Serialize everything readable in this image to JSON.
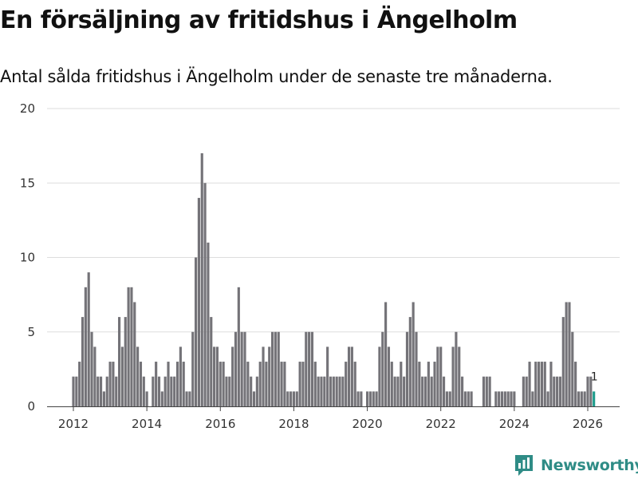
{
  "colors": {
    "bar": "#747378",
    "highlight": "#1e9c8c",
    "grid": "#dddddd",
    "axis": "#444444",
    "brand": "#2f8c86"
  },
  "brand": {
    "name": "Newsworthy",
    "icon": "newsworthy-logo-icon"
  },
  "chart_data": {
    "type": "bar",
    "title": "En försäljning av fritidshus i Ängelholm",
    "subtitle": "Antal sålda fritidshus i Ängelholm under de senaste tre månaderna.",
    "xlabel": "",
    "ylabel": "",
    "ylim": [
      0,
      20
    ],
    "yticks": [
      0,
      5,
      10,
      15,
      20
    ],
    "xticks": [
      2012,
      2014,
      2016,
      2018,
      2020,
      2022,
      2024,
      2026
    ],
    "start": {
      "year": 2012,
      "month": 1
    },
    "grid": true,
    "last_label": "1",
    "values": [
      2,
      2,
      3,
      6,
      8,
      9,
      5,
      4,
      2,
      2,
      1,
      2,
      3,
      3,
      2,
      6,
      4,
      6,
      8,
      8,
      7,
      4,
      3,
      2,
      1,
      0,
      2,
      3,
      2,
      1,
      2,
      3,
      2,
      2,
      3,
      4,
      3,
      1,
      1,
      5,
      10,
      14,
      17,
      15,
      11,
      6,
      4,
      4,
      3,
      3,
      2,
      2,
      4,
      5,
      8,
      5,
      5,
      3,
      2,
      1,
      2,
      3,
      4,
      3,
      4,
      5,
      5,
      5,
      3,
      3,
      1,
      1,
      1,
      1,
      3,
      3,
      5,
      5,
      5,
      3,
      2,
      2,
      2,
      4,
      2,
      2,
      2,
      2,
      2,
      3,
      4,
      4,
      3,
      1,
      1,
      0,
      1,
      1,
      1,
      1,
      4,
      5,
      7,
      4,
      3,
      2,
      2,
      3,
      2,
      5,
      6,
      7,
      5,
      3,
      2,
      2,
      3,
      2,
      3,
      4,
      4,
      2,
      1,
      1,
      4,
      5,
      4,
      2,
      1,
      1,
      1,
      0,
      0,
      0,
      2,
      2,
      2,
      0,
      1,
      1,
      1,
      1,
      1,
      1,
      1,
      0,
      0,
      2,
      2,
      3,
      1,
      3,
      3,
      3,
      3,
      1,
      3,
      2,
      2,
      2,
      6,
      7,
      7,
      5,
      3,
      1,
      1,
      1,
      2,
      2,
      1
    ]
  }
}
